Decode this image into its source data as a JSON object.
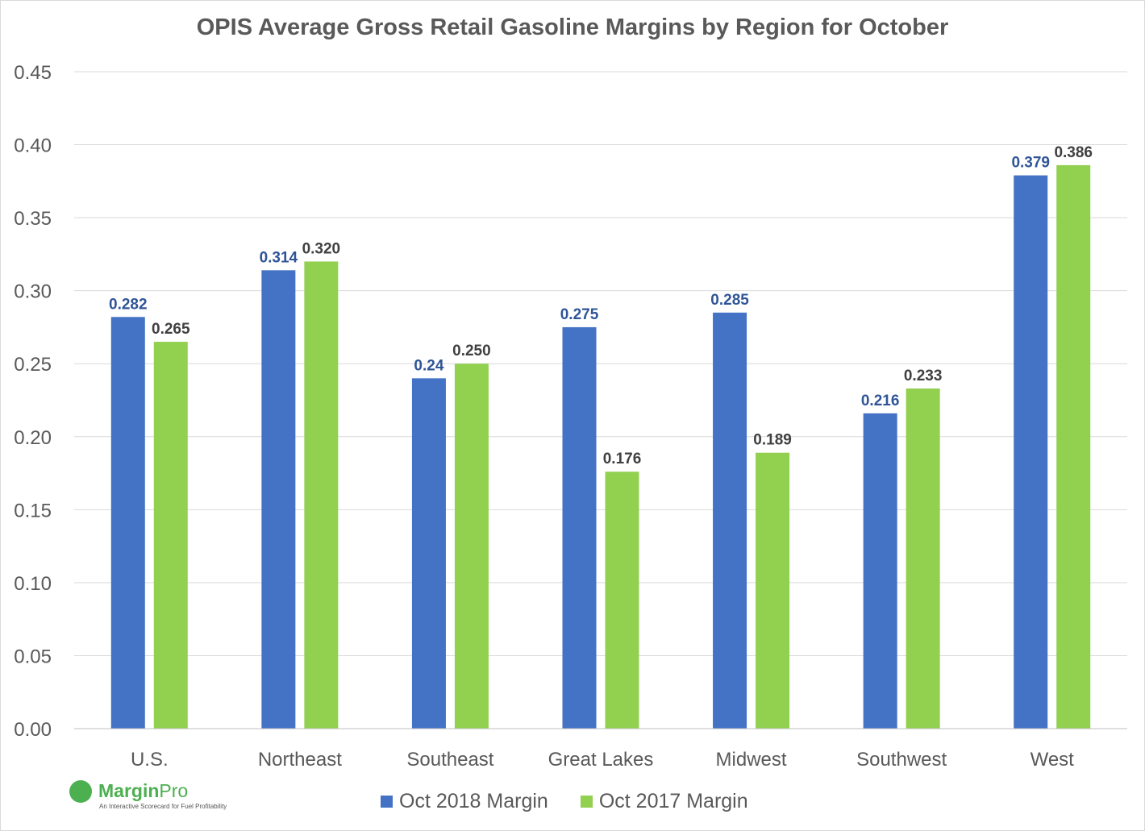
{
  "chart_data": {
    "type": "bar",
    "title": "OPIS Average Gross Retail Gasoline Margins by Region for October",
    "categories": [
      "U.S.",
      "Northeast",
      "Southeast",
      "Great Lakes",
      "Midwest",
      "Southwest",
      "West"
    ],
    "series": [
      {
        "name": "Oct 2018 Margin",
        "color": "#4472c4",
        "label_color": "#2f5597",
        "values": [
          0.282,
          0.314,
          0.24,
          0.275,
          0.285,
          0.216,
          0.379
        ],
        "labels": [
          "0.282",
          "0.314",
          "0.24",
          "0.275",
          "0.285",
          "0.216",
          "0.379"
        ]
      },
      {
        "name": "Oct 2017 Margin",
        "color": "#92d050",
        "label_color": "#404040",
        "values": [
          0.265,
          0.32,
          0.25,
          0.176,
          0.189,
          0.233,
          0.386
        ],
        "labels": [
          "0.265",
          "0.320",
          "0.250",
          "0.176",
          "0.189",
          "0.233",
          "0.386"
        ]
      }
    ],
    "ylim": [
      0,
      0.45
    ],
    "yticks": [
      "0.00",
      "0.05",
      "0.10",
      "0.15",
      "0.20",
      "0.25",
      "0.30",
      "0.35",
      "0.40",
      "0.45"
    ],
    "grid": true,
    "legend": "bottom",
    "xlabel": "",
    "ylabel": ""
  },
  "logo": {
    "name_bold": "Margin",
    "name_light": "Pro",
    "tagline": "An Interactive Scorecard for Fuel Profitability"
  }
}
